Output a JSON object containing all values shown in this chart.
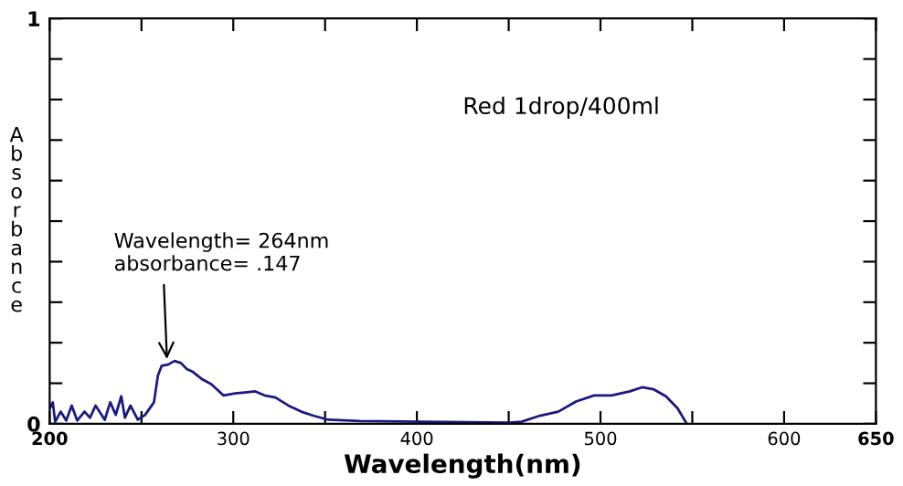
{
  "chart_data": {
    "type": "line",
    "xlabel": "Wavelength(nm)",
    "ylabel": "Absorbance",
    "annotations": [
      "Red 1drop/400ml",
      {
        "text": "Wavelength= 264nm\nabsorbance= .147",
        "x": 264,
        "y": 0.147
      }
    ],
    "series": [
      {
        "color": "#1a1a80",
        "x": [
          200,
          201.7,
          203,
          206,
          209,
          212,
          215,
          219,
          222,
          225,
          230,
          233,
          236,
          239,
          241,
          244,
          248,
          252,
          256.8,
          259,
          261,
          264.5,
          268,
          271.5,
          274.7,
          278,
          283,
          288,
          294.6,
          301,
          307.6,
          312,
          317,
          323,
          330,
          337,
          343.6,
          351.7,
          369,
          402,
          450.5,
          457,
          467,
          477,
          486.7,
          496.5,
          506,
          516,
          522.6,
          529,
          535.6,
          542,
          547
        ],
        "values": [
          0.038,
          0.053,
          0.005,
          0.03,
          0.008,
          0.045,
          0.008,
          0.03,
          0.015,
          0.045,
          0.01,
          0.053,
          0.022,
          0.068,
          0.015,
          0.045,
          0.01,
          0.022,
          0.053,
          0.12,
          0.143,
          0.146,
          0.155,
          0.15,
          0.135,
          0.128,
          0.11,
          0.098,
          0.07,
          0.075,
          0.078,
          0.08,
          0.07,
          0.065,
          0.045,
          0.03,
          0.02,
          0.01,
          0.007,
          0.005,
          0.003,
          0.005,
          0.02,
          0.03,
          0.055,
          0.07,
          0.07,
          0.08,
          0.09,
          0.085,
          0.068,
          0.038,
          0
        ]
      }
    ],
    "xlim": [
      200,
      650
    ],
    "xticks": [
      200,
      {
        "value": 250,
        "label": null
      },
      300,
      {
        "value": 350,
        "label": null
      },
      400,
      {
        "value": 450,
        "label": null
      },
      500,
      {
        "value": 550,
        "label": null
      },
      600,
      650
    ],
    "ylim": [
      0,
      1
    ],
    "yticks": [
      0,
      {
        "value": 0.1,
        "label": null
      },
      {
        "value": 0.2,
        "label": null
      },
      {
        "value": 0.3,
        "label": null
      },
      {
        "value": 0.4,
        "label": null
      },
      {
        "value": 0.5,
        "label": null
      },
      {
        "value": 0.6,
        "label": null
      },
      {
        "value": 0.7,
        "label": null
      },
      {
        "value": 0.8,
        "label": null
      },
      {
        "value": 0.9,
        "label": null
      },
      1
    ],
    "grid": false,
    "legend": false,
    "marker": "none",
    "line_style": "solid"
  }
}
